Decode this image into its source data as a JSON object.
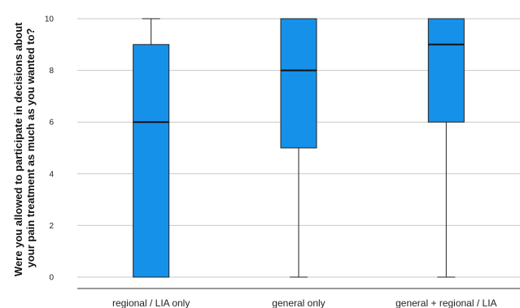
{
  "chart_data": {
    "type": "boxplot",
    "ylabel_lines": [
      "Were you allowed to participate in decisions about",
      "your pain treatment as much as you wanted to?"
    ],
    "xlabel": "",
    "ylim": [
      0,
      10
    ],
    "yticks": [
      "0",
      "2",
      "4",
      "6",
      "8",
      "10"
    ],
    "grid": "horizontal",
    "box_color": "#1591EA",
    "categories": [
      "regional / LIA only",
      "general only",
      "general + regional / LIA"
    ],
    "boxes": [
      {
        "min": 0,
        "q1": 0,
        "median": 6,
        "q3": 9,
        "max": 10
      },
      {
        "min": 0,
        "q1": 5,
        "median": 8,
        "q3": 10,
        "max": 10
      },
      {
        "min": 0,
        "q1": 6,
        "median": 9,
        "q3": 10,
        "max": 10
      }
    ]
  }
}
